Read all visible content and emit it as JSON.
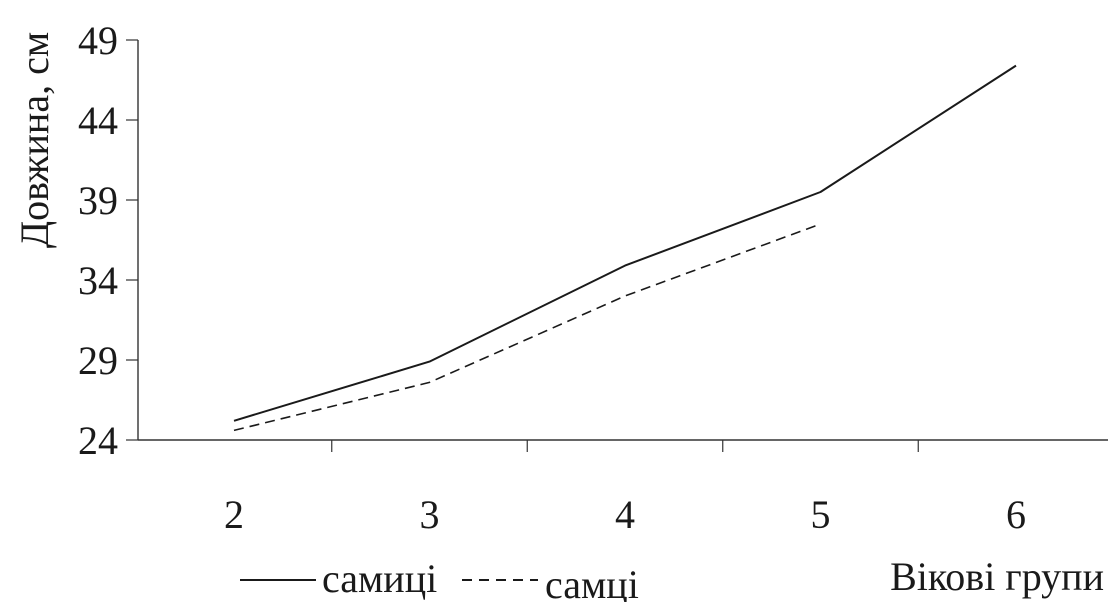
{
  "chart_data": {
    "type": "line",
    "title": "",
    "ylabel": "Довжина, см",
    "xlabel": "Вікові групи",
    "categories": [
      "2",
      "3",
      "4",
      "5",
      "6"
    ],
    "ylim": [
      24,
      49
    ],
    "yticks": [
      "24",
      "29",
      "34",
      "39",
      "44",
      "49"
    ],
    "grid": false,
    "legend_placement": "bottom",
    "series": [
      {
        "name": "самиці",
        "style": "solid",
        "color": "#1a1a1a",
        "values": [
          25.2,
          28.9,
          34.9,
          39.5,
          47.4
        ]
      },
      {
        "name": "самці",
        "style": "dashed",
        "color": "#1a1a1a",
        "values": [
          24.6,
          27.6,
          33.0,
          37.5,
          null
        ]
      }
    ]
  }
}
